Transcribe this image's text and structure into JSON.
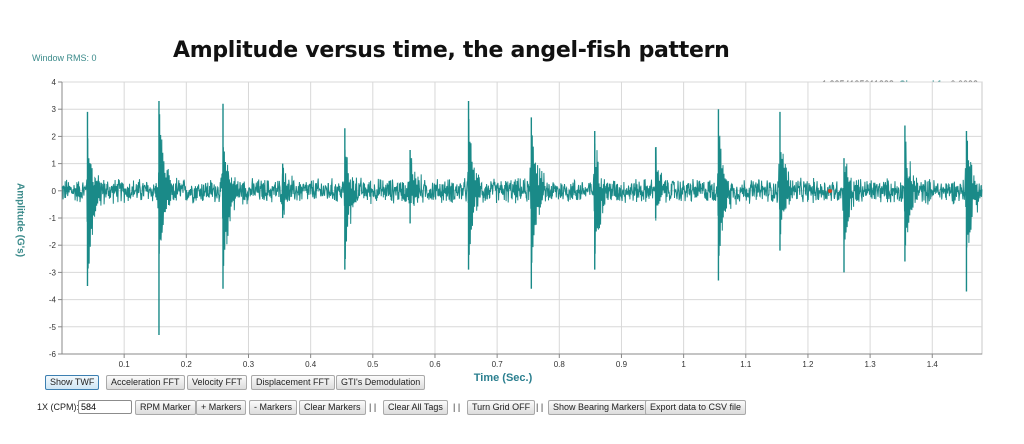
{
  "header": {
    "window_rms": "Window RMS: 0",
    "title": "Amplitude versus time, the angel-fish pattern"
  },
  "readout": {
    "time": "1.2354195011338:",
    "channel": "Channel 1:",
    "value": "-0.0092"
  },
  "colors": {
    "series": "#1a8a88",
    "grid": "#d8d8d8",
    "marker": "#d84020"
  },
  "tabs": {
    "show_twf": "Show TWF",
    "acceleration_fft": "Acceleration FFT",
    "velocity_fft": "Velocity FFT",
    "displacement_fft": "Displacement FFT",
    "gti_demod": "GTI's Demodulation"
  },
  "toolbar": {
    "cpm_label": "1X (CPM):",
    "cpm_value": "584",
    "rpm_marker": "RPM Marker",
    "add_markers": "+ Markers",
    "remove_markers": "- Markers",
    "clear_markers": "Clear Markers",
    "clear_all_tags": "Clear All Tags",
    "turn_grid_off": "Turn Grid OFF",
    "show_bearing_markers": "Show Bearing Markers",
    "export_csv": "Export data to CSV file",
    "separator": "| |"
  },
  "chart_data": {
    "type": "line",
    "xlabel": "Time (Sec.)",
    "ylabel": "Amplitude (G's)",
    "xlim": [
      0.0,
      1.48
    ],
    "ylim": [
      -6,
      4
    ],
    "xticks": [
      "0.1",
      "0.2",
      "0.3",
      "0.4",
      "0.5",
      "0.6",
      "0.7",
      "0.8",
      "0.9",
      "1",
      "1.1",
      "1.2",
      "1.3",
      "1.4"
    ],
    "yticks": [
      "4",
      "3",
      "2",
      "1",
      "0",
      "-1",
      "-2",
      "-3",
      "-4",
      "-5",
      "-6"
    ],
    "grid": true,
    "noise_amplitude": 0.35,
    "bursts": [
      {
        "t": 0.041,
        "max": 2.9,
        "min": -3.5
      },
      {
        "t": 0.156,
        "max": 3.3,
        "min": -5.3
      },
      {
        "t": 0.259,
        "max": 3.2,
        "min": -3.6
      },
      {
        "t": 0.355,
        "max": 1.0,
        "min": -1.0
      },
      {
        "t": 0.455,
        "max": 2.3,
        "min": -2.9
      },
      {
        "t": 0.56,
        "max": 1.5,
        "min": -1.2
      },
      {
        "t": 0.654,
        "max": 3.3,
        "min": -2.9
      },
      {
        "t": 0.755,
        "max": 2.7,
        "min": -3.6
      },
      {
        "t": 0.857,
        "max": 2.2,
        "min": -2.9
      },
      {
        "t": 0.955,
        "max": 1.6,
        "min": -1.0
      },
      {
        "t": 1.056,
        "max": 3.0,
        "min": -3.3
      },
      {
        "t": 1.155,
        "max": 2.9,
        "min": -2.2
      },
      {
        "t": 1.258,
        "max": 1.2,
        "min": -3.0
      },
      {
        "t": 1.356,
        "max": 2.4,
        "min": -2.6
      },
      {
        "t": 1.455,
        "max": 2.2,
        "min": -3.7
      }
    ],
    "cursor": {
      "t": 1.2354195011338,
      "value": -0.0092
    }
  }
}
